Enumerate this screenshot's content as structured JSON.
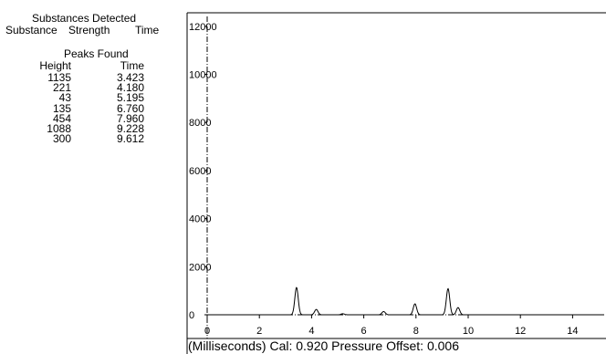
{
  "substances": {
    "title": "Substances Detected",
    "columns": [
      "Substance",
      "Strength",
      "Time"
    ]
  },
  "peaks": {
    "title": "Peaks Found",
    "columns": {
      "height": "Height",
      "time": "Time"
    },
    "rows": [
      {
        "height": "1135",
        "time": "3.423"
      },
      {
        "height": "221",
        "time": "4.180"
      },
      {
        "height": "43",
        "time": "5.195"
      },
      {
        "height": "135",
        "time": "6.760"
      },
      {
        "height": "454",
        "time": "7.960"
      },
      {
        "height": "1088",
        "time": "9.228"
      },
      {
        "height": "300",
        "time": "9.612"
      }
    ]
  },
  "footer": {
    "text": "(Milliseconds) Cal: 0.920  Pressure Offset: 0.006"
  },
  "chart_data": {
    "type": "line",
    "xlim": [
      0,
      15
    ],
    "ylim": [
      0,
      12000
    ],
    "x_ticks": [
      0,
      2,
      4,
      6,
      8,
      10,
      12,
      14
    ],
    "y_ticks": [
      0,
      2000,
      4000,
      6000,
      8000,
      10000,
      12000
    ],
    "x_tick_labels": [
      "0",
      "2",
      "4",
      "6",
      "8",
      "10",
      "12",
      "14"
    ],
    "y_tick_labels": [
      "0",
      "2000",
      "4000",
      "6000",
      "8000",
      "10000",
      "12000"
    ],
    "grid": false,
    "series": [
      {
        "peaks": [
          {
            "x": 3.423,
            "y": 1135
          },
          {
            "x": 4.18,
            "y": 221
          },
          {
            "x": 5.195,
            "y": 43
          },
          {
            "x": 6.76,
            "y": 135
          },
          {
            "x": 7.96,
            "y": 454
          },
          {
            "x": 9.228,
            "y": 1088
          },
          {
            "x": 9.612,
            "y": 300
          }
        ]
      }
    ],
    "colors": {
      "line": "#000000",
      "axis": "#000000"
    }
  }
}
